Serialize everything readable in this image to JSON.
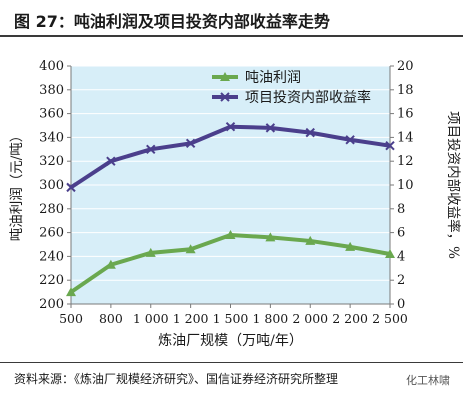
{
  "header": {
    "title": "图 27：吨油利润及项目投资内部收益率走势"
  },
  "source": {
    "text": "资料来源：《炼油厂规模经济研究》、国信证券经济研究所整理",
    "watermark": "化工林啸"
  },
  "chart_data": {
    "type": "line",
    "title": "",
    "xlabel": "炼油厂规模（万吨/年）",
    "ylabel_left": "吨油利润（元/吨）",
    "ylabel_right": "项目投资内部收益率，%",
    "categories": [
      "500",
      "800",
      "1 000",
      "1 200",
      "1 500",
      "1 800",
      "2 000",
      "2 200",
      "2 500"
    ],
    "y_left": {
      "min": 200,
      "max": 400,
      "ticks": [
        "200",
        "220",
        "240",
        "260",
        "280",
        "300",
        "320",
        "340",
        "360",
        "380",
        "400"
      ]
    },
    "y_right": {
      "min": 0,
      "max": 20,
      "ticks": [
        "0",
        "2",
        "4",
        "6",
        "8",
        "10",
        "12",
        "14",
        "16",
        "18",
        "20"
      ]
    },
    "plot_background": "#d7eef8",
    "legend_position": "top-center",
    "series": [
      {
        "name": "吨油利润",
        "axis": "left",
        "color": "#6aa84f",
        "marker": "triangle",
        "values": [
          210,
          233,
          243,
          246,
          258,
          256,
          253,
          248,
          242
        ]
      },
      {
        "name": "项目投资内部收益率",
        "axis": "right",
        "color": "#4b3f8c",
        "marker": "cross",
        "values": [
          9.8,
          12.0,
          13.0,
          13.5,
          14.9,
          14.8,
          14.4,
          13.8,
          13.3
        ]
      }
    ]
  }
}
